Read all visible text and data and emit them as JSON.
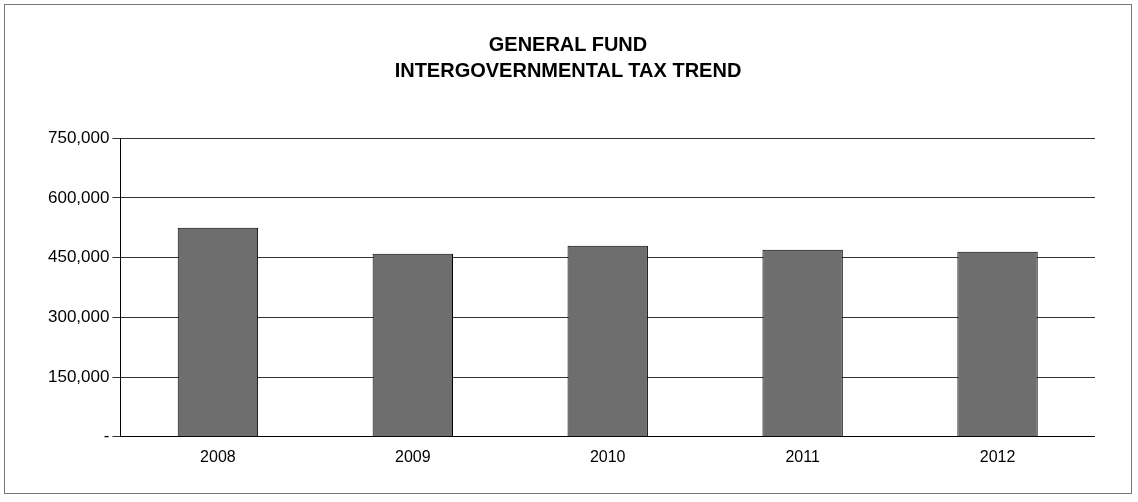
{
  "chart_data": {
    "type": "bar",
    "title": "GENERAL FUND\nINTERGOVERNMENTAL TAX TREND",
    "categories": [
      "2008",
      "2009",
      "2010",
      "2011",
      "2012"
    ],
    "values": [
      525000,
      460000,
      480000,
      470000,
      465000
    ],
    "color": "#6e6e6e",
    "ylim": [
      0,
      750000
    ],
    "yticks": [
      {
        "value": 0,
        "label": "-"
      },
      {
        "value": 150000,
        "label": "150,000"
      },
      {
        "value": 300000,
        "label": "300,000"
      },
      {
        "value": 450000,
        "label": "450,000"
      },
      {
        "value": 600000,
        "label": "600,000"
      },
      {
        "value": 750000,
        "label": "750,000"
      }
    ],
    "grid": "y",
    "legend": false
  }
}
